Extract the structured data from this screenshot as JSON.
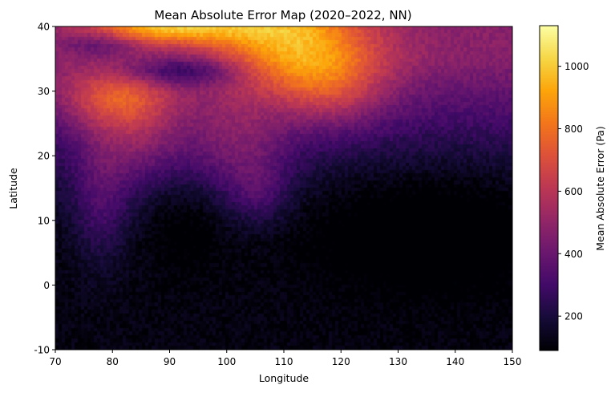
{
  "chart_data": {
    "type": "heatmap",
    "title": "Mean Absolute Error Map (2020–2022, NN)",
    "xlabel": "Longitude",
    "ylabel": "Latitude",
    "xlim": [
      70,
      150
    ],
    "ylim": [
      -10,
      40
    ],
    "x_ticks": [
      70,
      80,
      90,
      100,
      110,
      120,
      130,
      140,
      150
    ],
    "y_ticks": [
      -10,
      0,
      10,
      20,
      30,
      40
    ],
    "colormap": "inferno",
    "colorbar": {
      "label": "Mean Absolute Error (Pa)",
      "range": [
        90,
        1130
      ],
      "ticks": [
        200,
        400,
        600,
        800,
        1000
      ]
    },
    "value_range": [
      90,
      1130
    ],
    "grid": false
  }
}
